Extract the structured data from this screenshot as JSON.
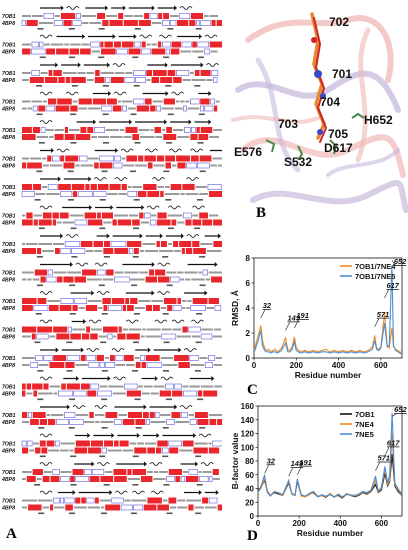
{
  "panels": {
    "a": "A",
    "b": "B",
    "c": "C",
    "d": "D"
  },
  "alignment": {
    "sequence_names": [
      "7OB1",
      "4BP8"
    ],
    "block_count": 18,
    "colors": {
      "conserved": "#e8262b",
      "similar_box": "#3b3bd6",
      "arrow": "#111111"
    }
  },
  "structure": {
    "residue_labels": [
      "702",
      "701",
      "704",
      "703",
      "705",
      "H652",
      "E576",
      "D617",
      "S532"
    ],
    "colors": {
      "ribbon_a": "#f0b8b6",
      "ribbon_b": "#c7b9dc",
      "ligand_orange": "#e38a2c",
      "ligand_red": "#d0212b",
      "ligand_blue": "#3a49c9",
      "sidechain_green": "#4a8a4a"
    }
  },
  "chart_data": [
    {
      "type": "line",
      "panel": "C",
      "xlabel": "Residue number",
      "ylabel": "RMSD, Å",
      "xlim": [
        0,
        700
      ],
      "ylim": [
        0,
        8
      ],
      "xticks": [
        0,
        200,
        400,
        600
      ],
      "yticks": [
        0,
        2,
        4,
        6,
        8
      ],
      "legend_position": "top-right",
      "annotations": [
        "32",
        "149",
        "191",
        "571",
        "617",
        "652"
      ],
      "annotation_x": [
        32,
        149,
        191,
        571,
        617,
        652
      ],
      "annotation_y": [
        3.2,
        2.2,
        2.4,
        2.5,
        4.8,
        7.8
      ],
      "series": [
        {
          "name": "7OB1/7NE4",
          "color": "#f08a24",
          "x": [
            0,
            10,
            20,
            32,
            40,
            50,
            60,
            70,
            80,
            90,
            100,
            110,
            120,
            130,
            149,
            160,
            170,
            180,
            191,
            200,
            220,
            240,
            260,
            280,
            300,
            320,
            340,
            360,
            380,
            400,
            420,
            440,
            460,
            480,
            500,
            520,
            540,
            560,
            571,
            580,
            590,
            600,
            617,
            630,
            640,
            652,
            660,
            670,
            680,
            690,
            700
          ],
          "y": [
            0.6,
            1.2,
            1.8,
            2.6,
            1.4,
            0.8,
            0.6,
            0.7,
            0.5,
            0.6,
            0.7,
            0.5,
            0.6,
            0.8,
            1.6,
            0.7,
            0.6,
            0.9,
            1.7,
            0.8,
            0.5,
            0.6,
            0.5,
            0.6,
            0.5,
            0.6,
            0.7,
            0.5,
            0.6,
            0.5,
            0.6,
            0.5,
            0.6,
            0.5,
            0.6,
            0.5,
            0.6,
            0.9,
            1.8,
            0.8,
            0.7,
            0.9,
            3.6,
            1.0,
            0.8,
            2.4,
            0.9,
            0.7,
            0.6,
            0.5,
            0.4
          ]
        },
        {
          "name": "7OB1/7NE5",
          "color": "#4a8fd6",
          "x": [
            0,
            10,
            20,
            32,
            40,
            50,
            60,
            70,
            80,
            90,
            100,
            110,
            120,
            130,
            149,
            160,
            170,
            180,
            191,
            200,
            220,
            240,
            260,
            280,
            300,
            320,
            340,
            360,
            380,
            400,
            420,
            440,
            460,
            480,
            500,
            520,
            540,
            560,
            571,
            580,
            590,
            600,
            617,
            630,
            640,
            652,
            660,
            670,
            680,
            690,
            700
          ],
          "y": [
            0.4,
            0.9,
            1.4,
            2.2,
            1.0,
            0.6,
            0.5,
            0.5,
            0.4,
            0.5,
            0.5,
            0.4,
            0.5,
            0.6,
            1.2,
            0.5,
            0.5,
            0.7,
            1.3,
            0.6,
            0.4,
            0.5,
            0.4,
            0.5,
            0.4,
            0.5,
            0.5,
            0.4,
            0.5,
            0.4,
            0.5,
            0.4,
            0.5,
            0.4,
            0.5,
            0.4,
            0.5,
            0.7,
            1.4,
            0.7,
            0.6,
            0.8,
            2.8,
            0.9,
            1.0,
            7.4,
            1.0,
            0.6,
            0.5,
            0.4,
            0.3
          ]
        }
      ]
    },
    {
      "type": "line",
      "panel": "D",
      "xlabel": "Residue number",
      "ylabel": "B-factor value",
      "xlim": [
        0,
        700
      ],
      "ylim": [
        0,
        160
      ],
      "xticks": [
        0,
        200,
        400,
        600
      ],
      "yticks": [
        0,
        20,
        40,
        60,
        80,
        100,
        120,
        140,
        160
      ],
      "legend_position": "top-right",
      "annotations": [
        "32",
        "149",
        "191",
        "571",
        "617",
        "652"
      ],
      "annotation_x": [
        32,
        149,
        191,
        571,
        617,
        652
      ],
      "annotation_y": [
        62,
        58,
        60,
        66,
        88,
        145
      ],
      "series": [
        {
          "name": "7OB1",
          "color": "#111111",
          "x": [
            0,
            15,
            32,
            45,
            60,
            80,
            100,
            120,
            149,
            165,
            180,
            191,
            210,
            230,
            250,
            270,
            290,
            310,
            330,
            350,
            370,
            390,
            410,
            430,
            450,
            470,
            490,
            510,
            530,
            550,
            571,
            585,
            600,
            617,
            630,
            640,
            652,
            665,
            680,
            700
          ],
          "y": [
            38,
            42,
            52,
            36,
            30,
            34,
            32,
            30,
            48,
            32,
            30,
            50,
            30,
            28,
            32,
            34,
            28,
            30,
            27,
            32,
            28,
            30,
            26,
            32,
            30,
            28,
            30,
            34,
            32,
            36,
            46,
            34,
            38,
            62,
            44,
            50,
            90,
            44,
            36,
            30
          ]
        },
        {
          "name": "7NE4",
          "color": "#f08a24",
          "x": [
            0,
            15,
            32,
            45,
            60,
            80,
            100,
            120,
            149,
            165,
            180,
            191,
            210,
            230,
            250,
            270,
            290,
            310,
            330,
            350,
            370,
            390,
            410,
            430,
            450,
            470,
            490,
            510,
            530,
            550,
            571,
            585,
            600,
            617,
            630,
            640,
            652,
            665,
            680,
            700
          ],
          "y": [
            36,
            40,
            55,
            34,
            30,
            36,
            33,
            30,
            50,
            31,
            31,
            52,
            29,
            28,
            31,
            35,
            29,
            30,
            28,
            33,
            27,
            31,
            27,
            33,
            30,
            29,
            31,
            35,
            33,
            37,
            52,
            35,
            40,
            68,
            46,
            52,
            120,
            46,
            38,
            31
          ]
        },
        {
          "name": "7NE5",
          "color": "#4a8fd6",
          "x": [
            0,
            15,
            32,
            45,
            60,
            80,
            100,
            120,
            149,
            165,
            180,
            191,
            210,
            230,
            250,
            270,
            290,
            310,
            330,
            350,
            370,
            390,
            410,
            430,
            450,
            470,
            490,
            510,
            530,
            550,
            571,
            585,
            600,
            617,
            630,
            640,
            652,
            665,
            680,
            700
          ],
          "y": [
            34,
            44,
            60,
            35,
            29,
            35,
            34,
            31,
            52,
            33,
            30,
            54,
            31,
            29,
            33,
            36,
            28,
            31,
            29,
            31,
            28,
            32,
            28,
            31,
            31,
            30,
            32,
            36,
            34,
            38,
            58,
            36,
            42,
            72,
            48,
            60,
            150,
            48,
            40,
            32
          ]
        }
      ]
    }
  ]
}
